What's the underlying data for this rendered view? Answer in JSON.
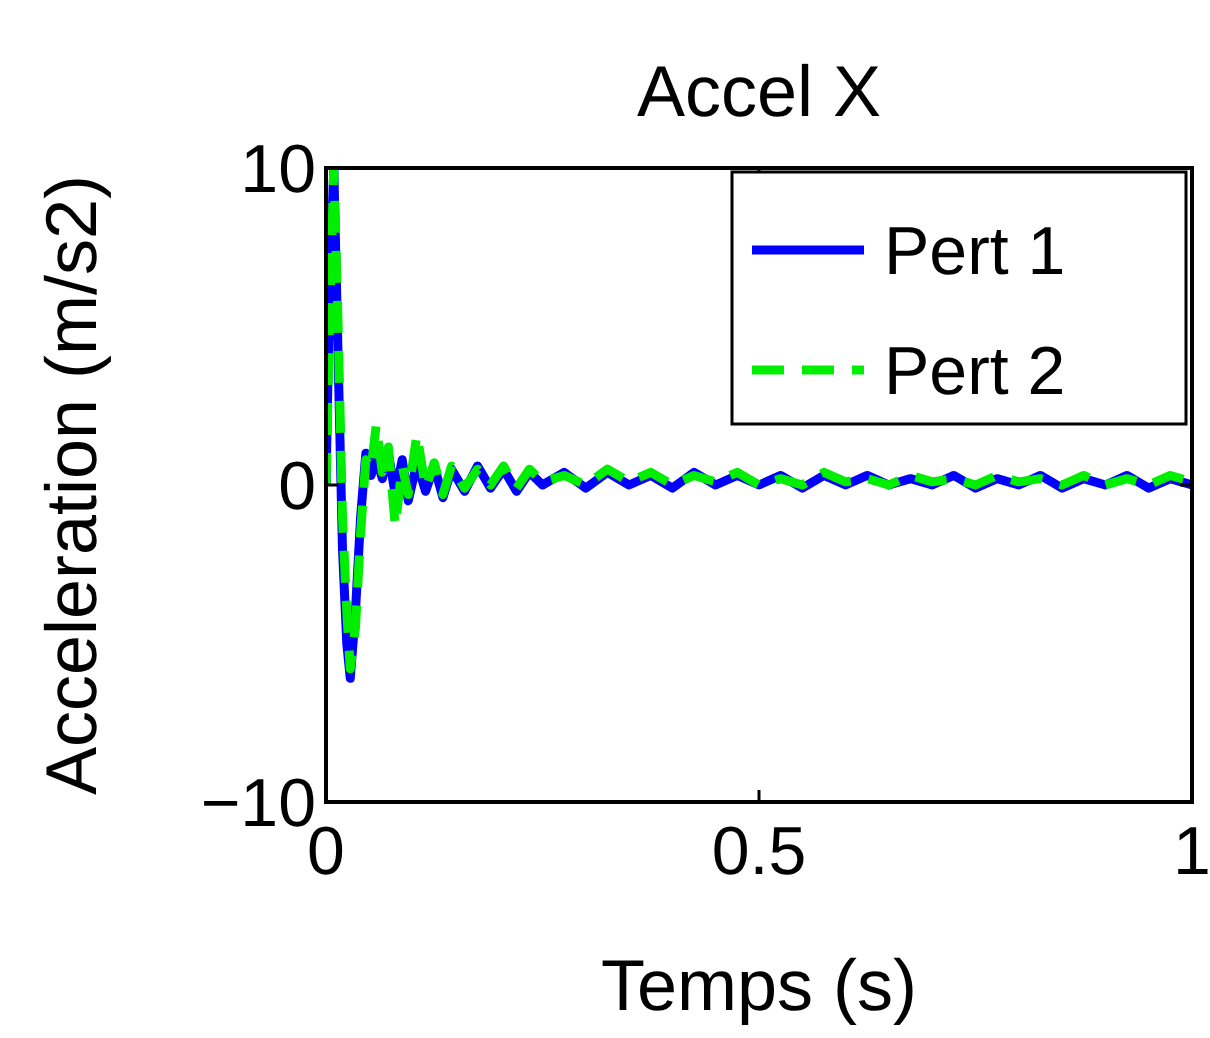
{
  "chart_data": {
    "type": "line",
    "title": "Accel X",
    "xlabel": "Temps (s)",
    "ylabel": "Acceleration (m/s2)",
    "x": [
      0,
      0.004,
      0.009,
      0.014,
      0.019,
      0.024,
      0.028,
      0.034,
      0.04,
      0.046,
      0.052,
      0.058,
      0.065,
      0.072,
      0.08,
      0.088,
      0.095,
      0.105,
      0.115,
      0.125,
      0.135,
      0.145,
      0.16,
      0.175,
      0.19,
      0.205,
      0.22,
      0.235,
      0.25,
      0.275,
      0.3,
      0.325,
      0.35,
      0.375,
      0.4,
      0.425,
      0.45,
      0.475,
      0.5,
      0.525,
      0.55,
      0.575,
      0.6,
      0.625,
      0.65,
      0.675,
      0.7,
      0.725,
      0.75,
      0.775,
      0.8,
      0.825,
      0.85,
      0.875,
      0.9,
      0.925,
      0.95,
      0.975,
      1
    ],
    "series": [
      {
        "name": "Pert 1",
        "color": "#0000ff",
        "line_style": "solid",
        "values": [
          0,
          6,
          10,
          4,
          -2,
          -5,
          -6.1,
          -4,
          -1,
          1,
          0.3,
          0.9,
          0.2,
          1,
          -0.3,
          0.8,
          -0.5,
          0.7,
          -0.2,
          0.6,
          -0.4,
          0.5,
          -0.2,
          0.6,
          -0.1,
          0.5,
          -0.2,
          0.4,
          0,
          0.4,
          -0.1,
          0.4,
          0,
          0.3,
          -0.1,
          0.4,
          0,
          0.3,
          0,
          0.3,
          -0.1,
          0.3,
          0,
          0.3,
          0,
          0.2,
          0,
          0.3,
          -0.1,
          0.2,
          0,
          0.3,
          -0.1,
          0.2,
          0,
          0.3,
          -0.1,
          0.2,
          0
        ]
      },
      {
        "name": "Pert 2",
        "color": "#00ee00",
        "line_style": "dashed",
        "values": [
          0,
          5,
          10,
          5,
          -1,
          -4,
          -5.8,
          -4.5,
          -1.5,
          0.8,
          0.5,
          1.9,
          0.4,
          1.2,
          -1.3,
          0.6,
          -0.3,
          1.6,
          -0.1,
          0.7,
          -0.3,
          0.6,
          -0.1,
          0.5,
          0,
          0.6,
          -0.1,
          0.5,
          0.1,
          0.3,
          0,
          0.5,
          0.1,
          0.4,
          0,
          0.3,
          0.1,
          0.4,
          0,
          0.2,
          0,
          0.4,
          0.1,
          0.2,
          0,
          0.3,
          0.1,
          0.2,
          0,
          0.3,
          0.1,
          0.2,
          0,
          0.3,
          0,
          0.2,
          0,
          0.3,
          0.1
        ]
      }
    ],
    "xlim": [
      0,
      1
    ],
    "xticks": [
      0,
      0.5,
      1
    ],
    "ylim": [
      -10,
      10
    ],
    "yticks": [
      {
        "value": -10,
        "label": "−10"
      },
      0,
      10
    ],
    "grid": false,
    "legend": "top right",
    "marker": "none"
  }
}
